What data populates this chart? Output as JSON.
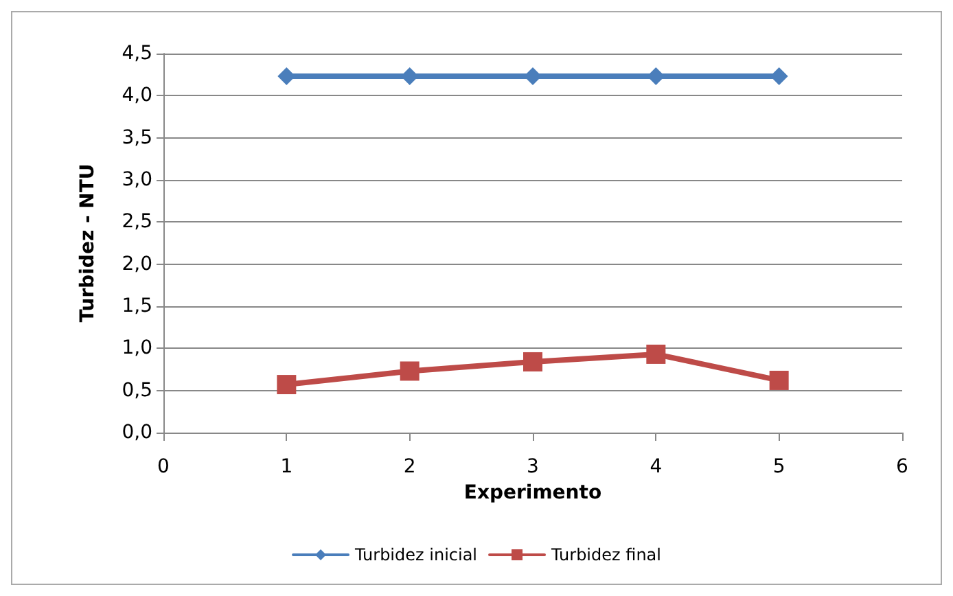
{
  "chart_data": {
    "type": "line",
    "xlabel": "Experimento",
    "ylabel": "Turbidez - NTU",
    "x": [
      1,
      2,
      3,
      4,
      5
    ],
    "series": [
      {
        "name": "Turbidez inicial",
        "color": "#4a7ebb",
        "marker": "diamond",
        "values": [
          4.23,
          4.23,
          4.23,
          4.23,
          4.23
        ]
      },
      {
        "name": "Turbidez final",
        "color": "#be4b48",
        "marker": "square",
        "values": [
          0.57,
          0.73,
          0.84,
          0.93,
          0.62
        ]
      }
    ],
    "xlim": [
      0,
      6
    ],
    "xticks": [
      0,
      1,
      2,
      3,
      4,
      5,
      6
    ],
    "ylim": [
      0,
      4.5
    ],
    "yticks": [
      {
        "value": 0,
        "label": "0,0"
      },
      {
        "value": 0.5,
        "label": "0,5"
      },
      {
        "value": 1,
        "label": "1,0"
      },
      {
        "value": 1.5,
        "label": "1,5"
      },
      {
        "value": 2,
        "label": "2,0"
      },
      {
        "value": 2.5,
        "label": "2,5"
      },
      {
        "value": 3,
        "label": "3,0"
      },
      {
        "value": 3.5,
        "label": "3,5"
      },
      {
        "value": 4,
        "label": "4,0"
      },
      {
        "value": 4.5,
        "label": "4,5"
      }
    ],
    "grid": "y",
    "legend": "bottom"
  }
}
